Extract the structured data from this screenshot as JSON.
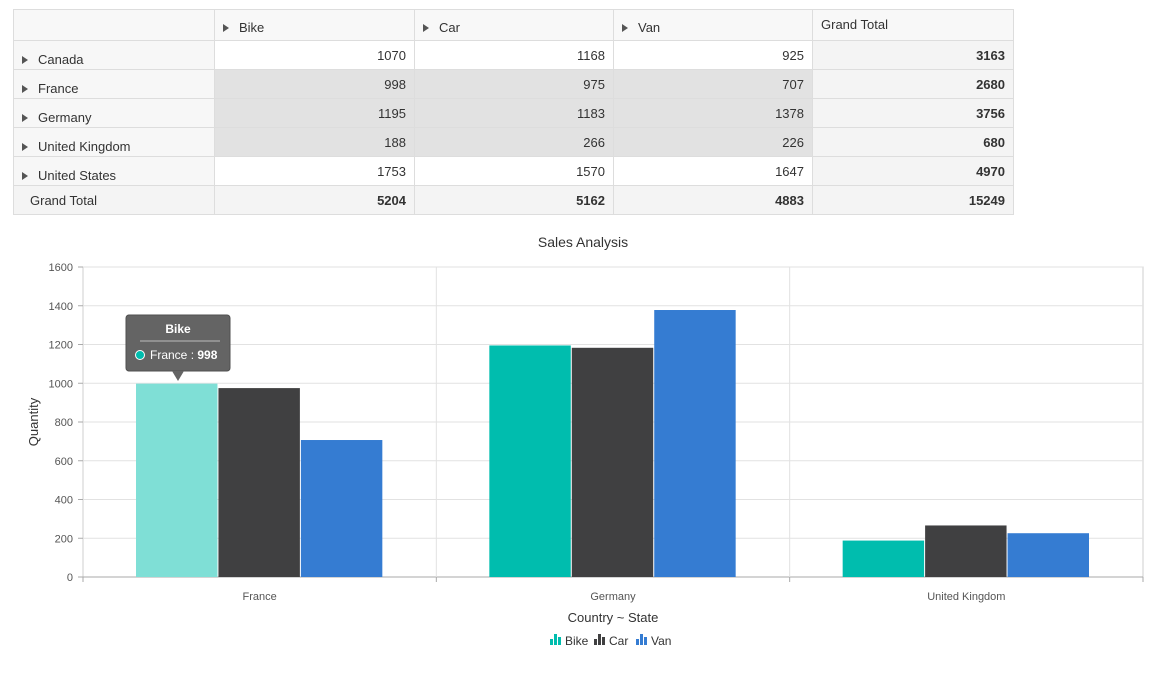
{
  "table": {
    "corner": "",
    "columns": [
      "Bike",
      "Car",
      "Van",
      "Grand Total"
    ],
    "rows": [
      {
        "label": "Canada",
        "values": [
          "1070",
          "1168",
          "925",
          "3163"
        ]
      },
      {
        "label": "France",
        "values": [
          "998",
          "975",
          "707",
          "2680"
        ]
      },
      {
        "label": "Germany",
        "values": [
          "1195",
          "1183",
          "1378",
          "3756"
        ]
      },
      {
        "label": "United Kingdom",
        "values": [
          "188",
          "266",
          "226",
          "680"
        ]
      },
      {
        "label": "United States",
        "values": [
          "1753",
          "1570",
          "1647",
          "4970"
        ]
      }
    ],
    "total": {
      "label": "Grand Total",
      "values": [
        "5204",
        "5162",
        "4883",
        "15249"
      ]
    }
  },
  "chart_data": {
    "type": "bar",
    "title": "Sales Analysis",
    "xlabel": "Country ~ State",
    "ylabel": "Quantity",
    "categories": [
      "France",
      "Germany",
      "United Kingdom"
    ],
    "series": [
      {
        "name": "Bike",
        "values": [
          998,
          1195,
          188
        ],
        "color": "#00bdae"
      },
      {
        "name": "Car",
        "values": [
          975,
          1183,
          266
        ],
        "color": "#404041"
      },
      {
        "name": "Van",
        "values": [
          707,
          1378,
          226
        ],
        "color": "#357cd2"
      }
    ],
    "ylim": [
      0,
      1600
    ],
    "yticks": [
      0,
      200,
      400,
      600,
      800,
      1000,
      1200,
      1400,
      1600
    ],
    "grid": true,
    "legend": "bottom",
    "highlighted": {
      "series": 0,
      "category": 0,
      "color": "#7fdfd6"
    },
    "tooltip": {
      "title": "Bike",
      "label": "France",
      "separator": " : ",
      "value": "998"
    }
  }
}
